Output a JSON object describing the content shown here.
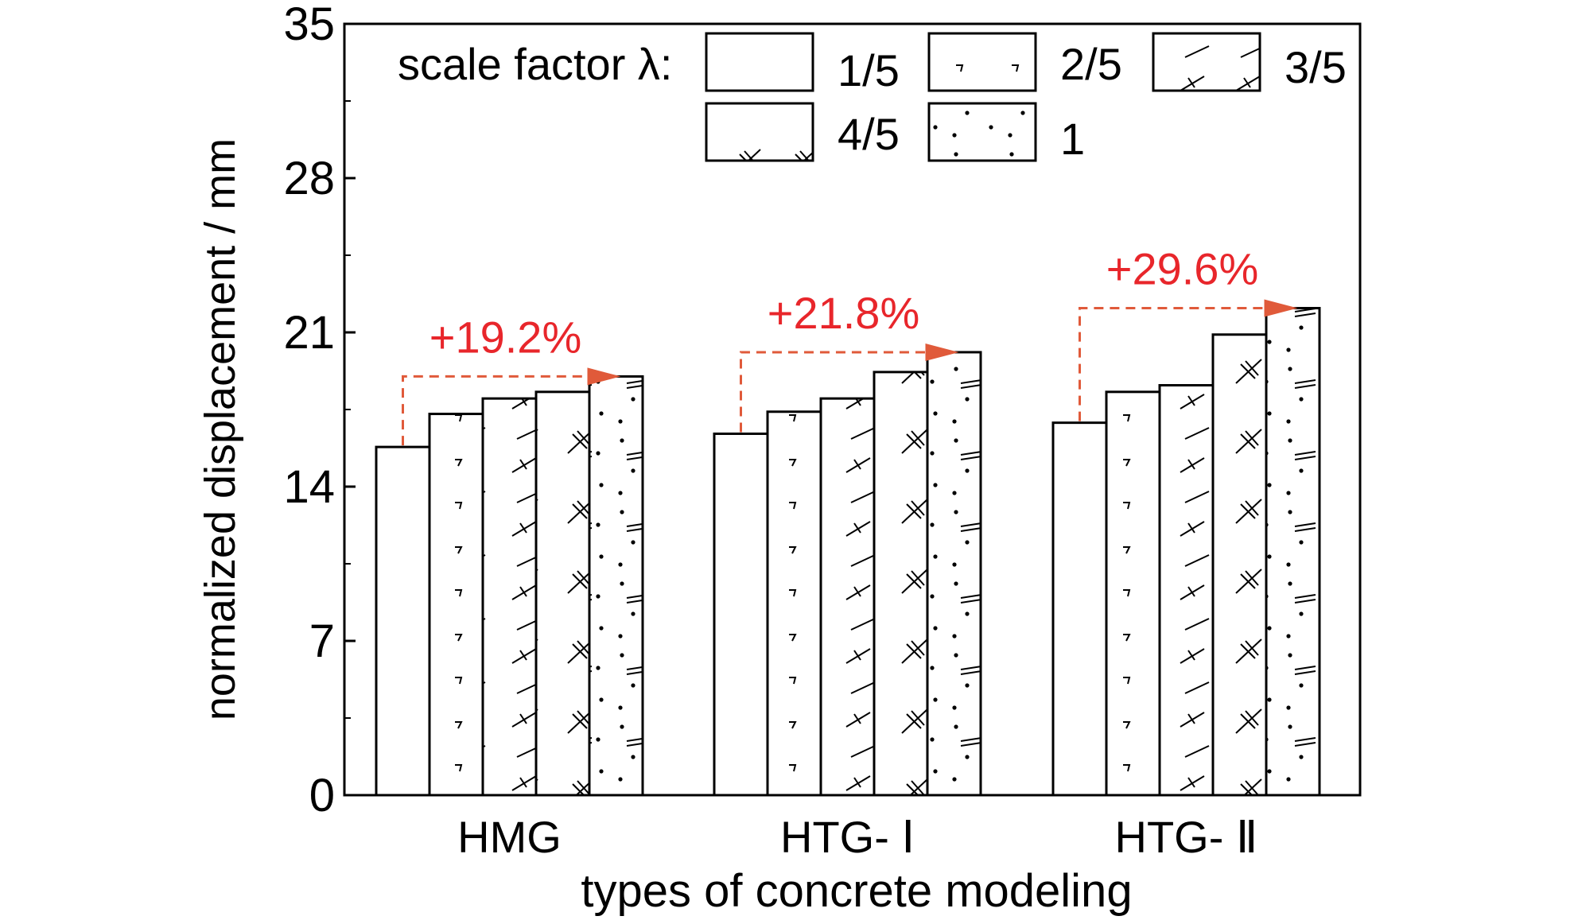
{
  "chart_data": {
    "type": "bar",
    "xlabel": "types of concrete modeling",
    "ylabel": "normalized displacement / mm",
    "ylim": [
      0,
      35
    ],
    "yticks": [
      0,
      7,
      14,
      21,
      28,
      35
    ],
    "legend_title": "scale factor λ:",
    "legend_placement": "top",
    "categories": [
      "HMG",
      "HTG- Ⅰ",
      "HTG- Ⅱ"
    ],
    "series": [
      {
        "name": "1/5",
        "pattern": "blank",
        "values": [
          15.8,
          16.4,
          16.9
        ]
      },
      {
        "name": "2/5",
        "pattern": "ticks",
        "values": [
          17.3,
          17.4,
          18.3
        ]
      },
      {
        "name": "3/5",
        "pattern": "slash",
        "values": [
          18.0,
          18.0,
          18.6
        ]
      },
      {
        "name": "4/5",
        "pattern": "cross",
        "values": [
          18.3,
          19.2,
          20.9
        ]
      },
      {
        "name": "1",
        "pattern": "dots",
        "values": [
          19.0,
          20.1,
          22.1
        ]
      }
    ],
    "annotations": [
      {
        "category": "HMG",
        "text": "+19.2%"
      },
      {
        "category": "HTG- Ⅰ",
        "text": "+21.8%"
      },
      {
        "category": "HTG- Ⅱ",
        "text": "+29.6%"
      }
    ],
    "annotation_color": "#e8262b",
    "arrow_color": "#e05a3a"
  }
}
